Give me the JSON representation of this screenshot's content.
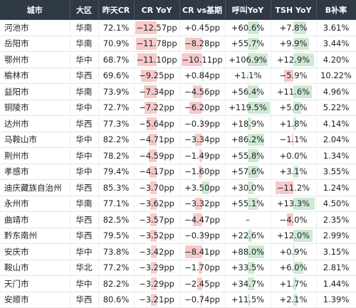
{
  "headers": [
    "城市",
    "大区",
    "昨天CR",
    "CR YoY",
    "CR vs基期",
    "呼叫YoY",
    "TSH YoY",
    "B补率"
  ],
  "colors": {
    "header_bg": "#303a47",
    "neg_fill": "#f7c9c9",
    "pos_fill": "#cde9d4"
  },
  "rows": [
    {
      "city": "河池市",
      "region": "华南",
      "cr": "72.1%",
      "cr_yoy": "−12.57pp",
      "cr_base": "+0.45pp",
      "call_yoy": "+60.6%",
      "tsh_yoy": "+7.8%",
      "b_rate": "3.61%"
    },
    {
      "city": "岳阳市",
      "region": "华南",
      "cr": "70.9%",
      "cr_yoy": "−11.78pp",
      "cr_base": "−8.28pp",
      "call_yoy": "+55.7%",
      "tsh_yoy": "+9.9%",
      "b_rate": "3.44%"
    },
    {
      "city": "鄂州市",
      "region": "华中",
      "cr": "68.7%",
      "cr_yoy": "−11.10pp",
      "cr_base": "−10.11pp",
      "call_yoy": "+106.9%",
      "tsh_yoy": "+12.9%",
      "b_rate": "4.20%"
    },
    {
      "city": "榆林市",
      "region": "华西",
      "cr": "69.6%",
      "cr_yoy": "−9.25pp",
      "cr_base": "+0.84pp",
      "call_yoy": "+1.1%",
      "tsh_yoy": "−5.9%",
      "b_rate": "10.22%"
    },
    {
      "city": "益阳市",
      "region": "华南",
      "cr": "73.9%",
      "cr_yoy": "−7.34pp",
      "cr_base": "−4.56pp",
      "call_yoy": "+56.4%",
      "tsh_yoy": "+11.6%",
      "b_rate": "4.96%"
    },
    {
      "city": "铜陵市",
      "region": "华中",
      "cr": "72.7%",
      "cr_yoy": "−7.22pp",
      "cr_base": "−6.20pp",
      "call_yoy": "+119.5%",
      "tsh_yoy": "+5.0%",
      "b_rate": "5.22%"
    },
    {
      "city": "达州市",
      "region": "华西",
      "cr": "77.3%",
      "cr_yoy": "−5.64pp",
      "cr_base": "−0.39pp",
      "call_yoy": "+18.9%",
      "tsh_yoy": "+1.8%",
      "b_rate": "4.14%"
    },
    {
      "city": "马鞍山市",
      "region": "华中",
      "cr": "82.2%",
      "cr_yoy": "−4.71pp",
      "cr_base": "−3.34pp",
      "call_yoy": "+86.2%",
      "tsh_yoy": "−1.1%",
      "b_rate": "2.04%"
    },
    {
      "city": "荆州市",
      "region": "华中",
      "cr": "78.2%",
      "cr_yoy": "−4.59pp",
      "cr_base": "−1.49pp",
      "call_yoy": "+55.8%",
      "tsh_yoy": "+0.0%",
      "b_rate": "1.34%"
    },
    {
      "city": "孝感市",
      "region": "华中",
      "cr": "79.4%",
      "cr_yoy": "−4.17pp",
      "cr_base": "−1.60pp",
      "call_yoy": "+57.6%",
      "tsh_yoy": "+3.1%",
      "b_rate": "3.55%"
    },
    {
      "city": "迪庆藏族自治州",
      "region": "华西",
      "cr": "85.3%",
      "cr_yoy": "−3.70pp",
      "cr_base": "+3.50pp",
      "call_yoy": "+30.0%",
      "tsh_yoy": "−11.2%",
      "b_rate": "1.24%"
    },
    {
      "city": "永州市",
      "region": "华南",
      "cr": "77.1%",
      "cr_yoy": "−3.62pp",
      "cr_base": "−3.32pp",
      "call_yoy": "+55.1%",
      "tsh_yoy": "+13.3%",
      "b_rate": "4.50%"
    },
    {
      "city": "曲靖市",
      "region": "华西",
      "cr": "82.5%",
      "cr_yoy": "−3.57pp",
      "cr_base": "−4.47pp",
      "call_yoy": "–",
      "tsh_yoy": "−4.0%",
      "b_rate": "2.35%"
    },
    {
      "city": "黔东南州",
      "region": "华西",
      "cr": "79.5%",
      "cr_yoy": "−3.52pp",
      "cr_base": "−0.39pp",
      "call_yoy": "+22.6%",
      "tsh_yoy": "+12.0%",
      "b_rate": "2.99%"
    },
    {
      "city": "安庆市",
      "region": "华中",
      "cr": "73.8%",
      "cr_yoy": "−3.42pp",
      "cr_base": "−8.41pp",
      "call_yoy": "+88.0%",
      "tsh_yoy": "+0.9%",
      "b_rate": "3.15%"
    },
    {
      "city": "鞍山市",
      "region": "华北",
      "cr": "77.2%",
      "cr_yoy": "−3.29pp",
      "cr_base": "−1.70pp",
      "call_yoy": "+33.5%",
      "tsh_yoy": "+6.0%",
      "b_rate": "2.81%"
    },
    {
      "city": "天门市",
      "region": "华中",
      "cr": "82.2%",
      "cr_yoy": "−3.29pp",
      "cr_base": "−2.45pp",
      "call_yoy": "+34.7%",
      "tsh_yoy": "+1.7%",
      "b_rate": "1.44%"
    },
    {
      "city": "安顺市",
      "region": "华西",
      "cr": "80.6%",
      "cr_yoy": "−3.21pp",
      "cr_base": "−0.74pp",
      "call_yoy": "+11.5%",
      "tsh_yoy": "+2.1%",
      "b_rate": "1.39%"
    }
  ]
}
